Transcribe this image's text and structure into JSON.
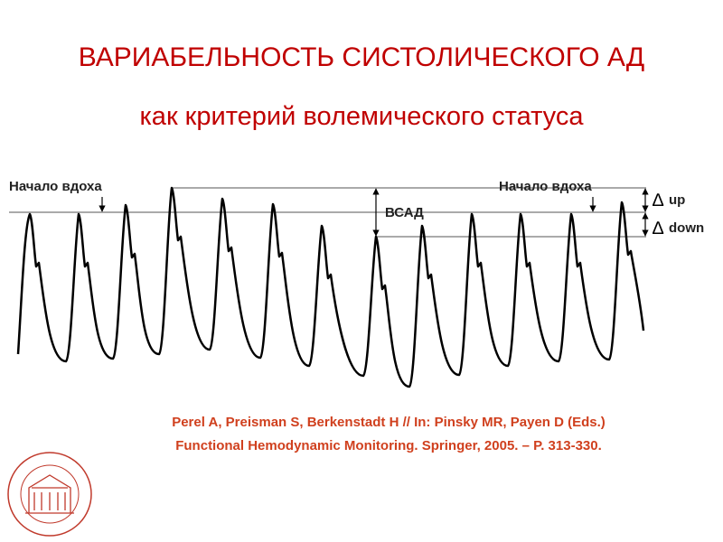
{
  "header": {
    "title": "ВАРИАБЕЛЬНОСТЬ СИСТОЛИЧЕСКОГО АД",
    "subtitle": "как критерий волемического статуса"
  },
  "diagram": {
    "labels": {
      "inspiration_left": "Начало вдоха",
      "inspiration_right": "Начало вдоха",
      "bsad": "ВСАД",
      "delta_up_symbol": "∆",
      "delta_up": "up",
      "delta_down_symbol": "∆",
      "delta_down": "down"
    }
  },
  "citation": {
    "lines": [
      "Perel A, Preisman S, Berkenstadt H // In: Pinsky MR, Payen D (Eds.)",
      "Functional Hemodynamic Monitoring. Springer, 2005. – P. 313-330."
    ]
  }
}
